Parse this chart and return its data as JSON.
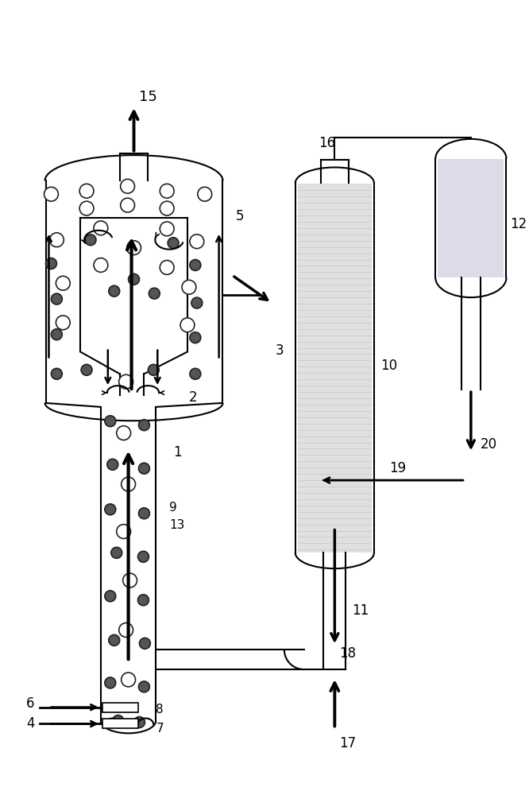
{
  "bg_color": "#ffffff",
  "line_color": "#000000",
  "gray_fill": "#d4d4d4",
  "light_gray": "#e0e0e0"
}
